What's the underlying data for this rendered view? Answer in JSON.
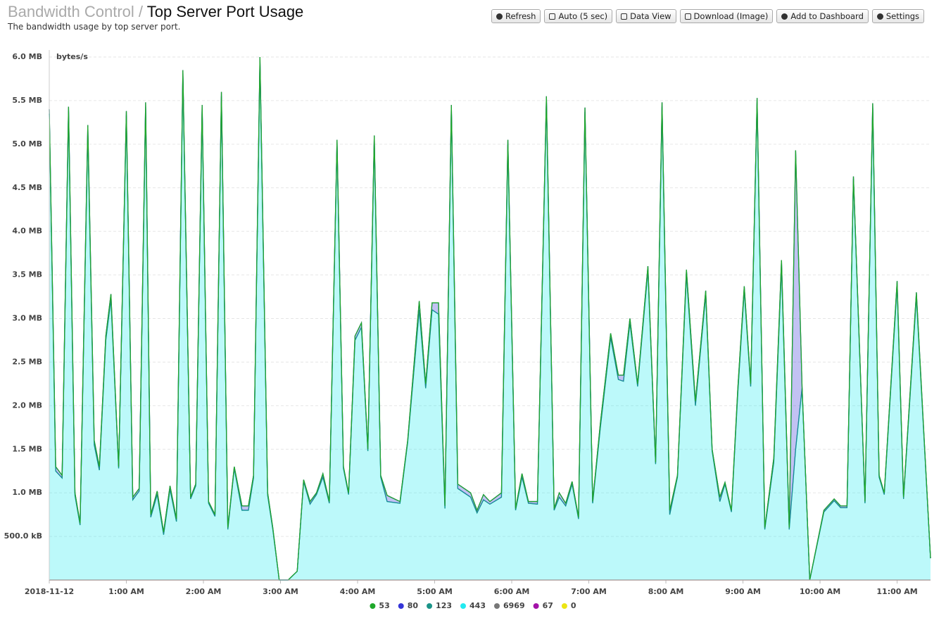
{
  "header": {
    "section": "Bandwidth Control",
    "separator": "/",
    "title": "Top Server Port Usage",
    "subtitle": "The bandwidth usage by top server port."
  },
  "toolbar": {
    "buttons": [
      "Refresh",
      "Auto (5 sec)",
      "Data View",
      "Download (Image)",
      "Add to Dashboard",
      "Settings"
    ]
  },
  "chart_data": {
    "type": "area",
    "stacked": true,
    "grid": true,
    "y_label": "bytes/s",
    "x": [
      0,
      5,
      10,
      15,
      20,
      24,
      30,
      35,
      39,
      44,
      48,
      54,
      60,
      65,
      70,
      75,
      79,
      84,
      89,
      94,
      99,
      104,
      110,
      114,
      119,
      124,
      129,
      134,
      139,
      144,
      150,
      155,
      159,
      164,
      170,
      174,
      179,
      186,
      193,
      198,
      203,
      208,
      213,
      218,
      224,
      229,
      233,
      238,
      243,
      248,
      253,
      258,
      263,
      273,
      279,
      288,
      293,
      298,
      303,
      308,
      313,
      318,
      328,
      333,
      338,
      343,
      352,
      357,
      363,
      368,
      373,
      380,
      387,
      393,
      397,
      402,
      407,
      412,
      417,
      423,
      429,
      437,
      443,
      447,
      452,
      458,
      466,
      472,
      477,
      483,
      489,
      496,
      503,
      511,
      516,
      522,
      526,
      531,
      536,
      541,
      546,
      551,
      557,
      564,
      570,
      576,
      581,
      586,
      592,
      603,
      611,
      616,
      621,
      626,
      635,
      641,
      646,
      650,
      660,
      665,
      675,
      686
    ],
    "xlim": [
      0,
      686
    ],
    "xticks": [
      {
        "value": 0,
        "label": "2018-11-12"
      },
      {
        "value": 60,
        "label": "1:00 AM"
      },
      {
        "value": 120,
        "label": "2:00 AM"
      },
      {
        "value": 180,
        "label": "3:00 AM"
      },
      {
        "value": 240,
        "label": "4:00 AM"
      },
      {
        "value": 300,
        "label": "5:00 AM"
      },
      {
        "value": 360,
        "label": "6:00 AM"
      },
      {
        "value": 420,
        "label": "7:00 AM"
      },
      {
        "value": 480,
        "label": "8:00 AM"
      },
      {
        "value": 540,
        "label": "9:00 AM"
      },
      {
        "value": 600,
        "label": "10:00 AM"
      },
      {
        "value": 660,
        "label": "11:00 AM"
      }
    ],
    "ylim": [
      0,
      6000000
    ],
    "yticks": [
      {
        "value": 500000,
        "label": "500.0 kB"
      },
      {
        "value": 1000000,
        "label": "1.0 MB"
      },
      {
        "value": 1500000,
        "label": "1.5 MB"
      },
      {
        "value": 2000000,
        "label": "2.0 MB"
      },
      {
        "value": 2500000,
        "label": "2.5 MB"
      },
      {
        "value": 3000000,
        "label": "3.0 MB"
      },
      {
        "value": 3500000,
        "label": "3.5 MB"
      },
      {
        "value": 4000000,
        "label": "4.0 MB"
      },
      {
        "value": 4500000,
        "label": "4.5 MB"
      },
      {
        "value": 5000000,
        "label": "5.0 MB"
      },
      {
        "value": 5500000,
        "label": "5.5 MB"
      },
      {
        "value": 6000000,
        "label": "6.0 MB"
      }
    ],
    "series": [
      {
        "name": "53",
        "color": "#1fa82a",
        "values": [
          0,
          0,
          0,
          0,
          0,
          0,
          0,
          0,
          0,
          0,
          0,
          0,
          0,
          0,
          0,
          0,
          0,
          0,
          0,
          0,
          0,
          0,
          0,
          0,
          0,
          0,
          0,
          0,
          0,
          0,
          0,
          0,
          0,
          0,
          0,
          0,
          0,
          0,
          0,
          0,
          0,
          0,
          0,
          0,
          0,
          0,
          0,
          0,
          0,
          0,
          0,
          0,
          0,
          0,
          0,
          0,
          0,
          0,
          0,
          0,
          0,
          0,
          0,
          0,
          0,
          0,
          0,
          0,
          0,
          0,
          0,
          0,
          0,
          0,
          0,
          0,
          0,
          0,
          0,
          0,
          0,
          0,
          0,
          0,
          0,
          0,
          0,
          0,
          0,
          0,
          0,
          0,
          0,
          0,
          0,
          0,
          0,
          0,
          0,
          0,
          0,
          0,
          0,
          0,
          0,
          0,
          0,
          0,
          0,
          0,
          0,
          0,
          0,
          0,
          0,
          0,
          0,
          0,
          0,
          0,
          0,
          0
        ]
      },
      {
        "name": "80",
        "color": "#3535d8",
        "values": [
          50000,
          50000,
          30000,
          50000,
          30000,
          20000,
          70000,
          50000,
          40000,
          50000,
          60000,
          20000,
          50000,
          30000,
          30000,
          50000,
          30000,
          40000,
          30000,
          40000,
          30000,
          50000,
          20000,
          20000,
          50000,
          20000,
          20000,
          50000,
          20000,
          20000,
          50000,
          50000,
          30000,
          50000,
          30000,
          20000,
          0,
          0,
          0,
          20000,
          30000,
          20000,
          40000,
          20000,
          50000,
          20000,
          20000,
          50000,
          50000,
          20000,
          50000,
          20000,
          70000,
          20000,
          20000,
          100000,
          50000,
          80000,
          130000,
          30000,
          50000,
          50000,
          50000,
          30000,
          60000,
          30000,
          50000,
          50000,
          20000,
          40000,
          20000,
          30000,
          50000,
          20000,
          50000,
          30000,
          30000,
          20000,
          50000,
          20000,
          50000,
          50000,
          50000,
          70000,
          50000,
          30000,
          50000,
          20000,
          50000,
          50000,
          20000,
          60000,
          50000,
          50000,
          20000,
          50000,
          20000,
          20000,
          50000,
          50000,
          30000,
          50000,
          20000,
          50000,
          70000,
          20000,
          3430000,
          20000,
          0,
          20000,
          20000,
          20000,
          20000,
          30000,
          20000,
          50000,
          20000,
          20000,
          50000,
          20000,
          50000,
          0
        ]
      },
      {
        "name": "123",
        "color": "#1b9488",
        "values": [
          0,
          0,
          0,
          0,
          0,
          0,
          0,
          0,
          0,
          0,
          0,
          0,
          0,
          0,
          0,
          0,
          0,
          0,
          0,
          0,
          0,
          0,
          0,
          0,
          0,
          0,
          0,
          0,
          0,
          0,
          0,
          0,
          0,
          0,
          0,
          0,
          0,
          0,
          0,
          0,
          0,
          0,
          0,
          0,
          0,
          0,
          0,
          0,
          0,
          0,
          0,
          0,
          0,
          0,
          0,
          0,
          0,
          0,
          0,
          0,
          0,
          0,
          0,
          0,
          0,
          0,
          0,
          0,
          0,
          0,
          0,
          0,
          0,
          0,
          0,
          0,
          0,
          0,
          0,
          0,
          0,
          0,
          0,
          0,
          0,
          0,
          0,
          0,
          0,
          0,
          0,
          0,
          0,
          0,
          0,
          0,
          0,
          0,
          0,
          0,
          0,
          0,
          0,
          0,
          0,
          0,
          0,
          0,
          0,
          0,
          0,
          0,
          0,
          0,
          0,
          0,
          0,
          0,
          0,
          0,
          0,
          0
        ]
      },
      {
        "name": "443",
        "color": "#22eaf0",
        "values": [
          5350000,
          1250000,
          1170000,
          5380000,
          970000,
          630000,
          5150000,
          1550000,
          1260000,
          2750000,
          3220000,
          1280000,
          5330000,
          920000,
          1020000,
          5430000,
          720000,
          980000,
          520000,
          1040000,
          670000,
          5800000,
          930000,
          1080000,
          5400000,
          880000,
          730000,
          5550000,
          580000,
          1280000,
          800000,
          800000,
          1170000,
          5950000,
          970000,
          580000,
          0,
          0,
          100000,
          1130000,
          870000,
          980000,
          1180000,
          880000,
          5000000,
          1280000,
          980000,
          2750000,
          2900000,
          1480000,
          5050000,
          1180000,
          900000,
          880000,
          1580000,
          3100000,
          2200000,
          3100000,
          3050000,
          820000,
          5400000,
          1050000,
          950000,
          770000,
          920000,
          870000,
          950000,
          5000000,
          800000,
          1180000,
          880000,
          870000,
          5500000,
          800000,
          950000,
          850000,
          1100000,
          700000,
          5370000,
          880000,
          1750000,
          2780000,
          2300000,
          2280000,
          2950000,
          2220000,
          3550000,
          1330000,
          5430000,
          750000,
          1180000,
          3500000,
          2000000,
          3270000,
          1480000,
          900000,
          1100000,
          780000,
          2150000,
          3320000,
          2220000,
          5480000,
          580000,
          1350000,
          3600000,
          580000,
          1500000,
          2200000,
          0,
          780000,
          910000,
          830000,
          830000,
          4600000,
          880000,
          5420000,
          1180000,
          980000,
          3380000,
          930000,
          3250000,
          250000
        ]
      },
      {
        "name": "6969",
        "color": "#777777",
        "values": [
          0,
          0,
          0,
          0,
          0,
          0,
          0,
          0,
          0,
          0,
          0,
          0,
          0,
          0,
          0,
          0,
          0,
          0,
          0,
          0,
          0,
          0,
          0,
          0,
          0,
          0,
          0,
          0,
          0,
          0,
          0,
          0,
          0,
          0,
          0,
          0,
          0,
          0,
          0,
          0,
          0,
          0,
          0,
          0,
          0,
          0,
          0,
          0,
          0,
          0,
          0,
          0,
          0,
          0,
          0,
          0,
          0,
          0,
          0,
          0,
          0,
          0,
          0,
          0,
          0,
          0,
          0,
          0,
          0,
          0,
          0,
          0,
          0,
          0,
          0,
          0,
          0,
          0,
          0,
          0,
          0,
          0,
          0,
          0,
          0,
          0,
          0,
          0,
          0,
          0,
          0,
          0,
          0,
          0,
          0,
          0,
          0,
          0,
          0,
          0,
          0,
          0,
          0,
          0,
          0,
          0,
          0,
          0,
          0,
          0,
          0,
          0,
          0,
          0,
          0,
          0,
          0,
          0,
          0,
          0,
          0,
          0
        ]
      },
      {
        "name": "67",
        "color": "#a312a8",
        "values": [
          0,
          0,
          0,
          0,
          0,
          0,
          0,
          0,
          0,
          0,
          0,
          0,
          0,
          0,
          0,
          0,
          0,
          0,
          0,
          0,
          0,
          0,
          0,
          0,
          0,
          0,
          0,
          0,
          0,
          0,
          0,
          0,
          0,
          0,
          0,
          0,
          0,
          0,
          0,
          0,
          0,
          0,
          0,
          0,
          0,
          0,
          0,
          0,
          0,
          0,
          0,
          0,
          0,
          0,
          0,
          0,
          0,
          0,
          0,
          0,
          0,
          0,
          0,
          0,
          0,
          0,
          0,
          0,
          0,
          0,
          0,
          0,
          0,
          0,
          0,
          0,
          0,
          0,
          0,
          0,
          0,
          0,
          0,
          0,
          0,
          0,
          0,
          0,
          0,
          0,
          0,
          0,
          0,
          0,
          0,
          0,
          0,
          0,
          0,
          0,
          0,
          0,
          0,
          0,
          0,
          0,
          0,
          0,
          0,
          0,
          0,
          0,
          0,
          0,
          0,
          0,
          0,
          0,
          0,
          0,
          0,
          0
        ]
      },
      {
        "name": "0",
        "color": "#ece514",
        "values": [
          0,
          0,
          0,
          0,
          0,
          0,
          0,
          0,
          0,
          0,
          0,
          0,
          0,
          0,
          0,
          0,
          0,
          0,
          0,
          0,
          0,
          0,
          0,
          0,
          0,
          0,
          0,
          0,
          0,
          0,
          0,
          0,
          0,
          0,
          0,
          0,
          0,
          0,
          0,
          0,
          0,
          0,
          0,
          0,
          0,
          0,
          0,
          0,
          0,
          0,
          0,
          0,
          0,
          0,
          0,
          0,
          0,
          0,
          0,
          0,
          0,
          0,
          0,
          0,
          0,
          0,
          0,
          0,
          0,
          0,
          0,
          0,
          0,
          0,
          0,
          0,
          0,
          0,
          0,
          0,
          0,
          0,
          0,
          0,
          0,
          0,
          0,
          0,
          0,
          0,
          0,
          0,
          0,
          0,
          0,
          0,
          0,
          0,
          0,
          0,
          0,
          0,
          0,
          0,
          0,
          0,
          0,
          0,
          0,
          0,
          0,
          0,
          0,
          0,
          0,
          0,
          0,
          0,
          0,
          0,
          0,
          0
        ]
      }
    ]
  }
}
